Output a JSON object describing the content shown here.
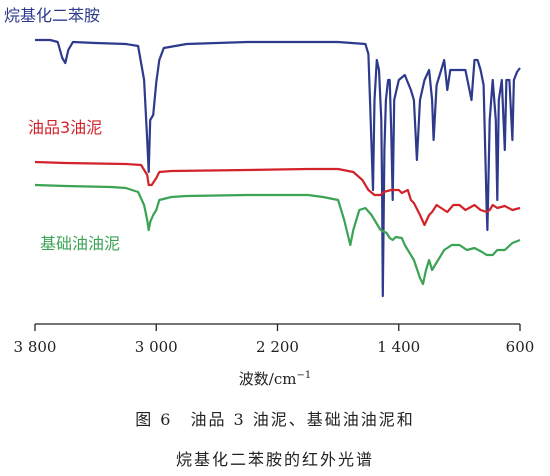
{
  "chart_data": {
    "type": "line",
    "x_reversed": true,
    "xlim": [
      3800,
      600
    ],
    "ticks": [
      3800,
      3000,
      2200,
      1400,
      600
    ],
    "tick_labels": [
      "3 800",
      "3 000",
      "2 200",
      "1 400",
      "600"
    ],
    "xlabel": "波数/cm",
    "xlabel_sup": "−1",
    "series": [
      {
        "name": "烷基化二苯胺",
        "color": "#2e3a8c",
        "points": [
          [
            3800,
            40
          ],
          [
            3700,
            40
          ],
          [
            3650,
            42
          ],
          [
            3620,
            58
          ],
          [
            3600,
            63
          ],
          [
            3580,
            50
          ],
          [
            3550,
            42
          ],
          [
            3400,
            43
          ],
          [
            3200,
            44
          ],
          [
            3120,
            46
          ],
          [
            3080,
            80
          ],
          [
            3060,
            140
          ],
          [
            3050,
            172
          ],
          [
            3040,
            120
          ],
          [
            3020,
            115
          ],
          [
            3000,
            82
          ],
          [
            2980,
            60
          ],
          [
            2950,
            48
          ],
          [
            2800,
            44
          ],
          [
            2400,
            42
          ],
          [
            2000,
            42
          ],
          [
            1800,
            42
          ],
          [
            1620,
            44
          ],
          [
            1600,
            54
          ],
          [
            1590,
            100
          ],
          [
            1570,
            190
          ],
          [
            1560,
            100
          ],
          [
            1545,
            60
          ],
          [
            1530,
            70
          ],
          [
            1515,
            120
          ],
          [
            1510,
            190
          ],
          [
            1505,
            296
          ],
          [
            1495,
            150
          ],
          [
            1485,
            100
          ],
          [
            1470,
            80
          ],
          [
            1460,
            80
          ],
          [
            1450,
            130
          ],
          [
            1440,
            200
          ],
          [
            1430,
            100
          ],
          [
            1400,
            80
          ],
          [
            1360,
            75
          ],
          [
            1320,
            90
          ],
          [
            1300,
            100
          ],
          [
            1280,
            160
          ],
          [
            1260,
            100
          ],
          [
            1230,
            80
          ],
          [
            1200,
            70
          ],
          [
            1180,
            100
          ],
          [
            1170,
            140
          ],
          [
            1150,
            85
          ],
          [
            1120,
            70
          ],
          [
            1100,
            60
          ],
          [
            1080,
            90
          ],
          [
            1060,
            70
          ],
          [
            1000,
            70
          ],
          [
            960,
            70
          ],
          [
            920,
            100
          ],
          [
            900,
            60
          ],
          [
            880,
            60
          ],
          [
            860,
            70
          ],
          [
            840,
            85
          ],
          [
            820,
            210
          ],
          [
            815,
            230
          ],
          [
            800,
            120
          ],
          [
            780,
            80
          ],
          [
            760,
            120
          ],
          [
            750,
            200
          ],
          [
            740,
            100
          ],
          [
            720,
            80
          ],
          [
            700,
            150
          ],
          [
            690,
            80
          ],
          [
            670,
            80
          ],
          [
            650,
            140
          ],
          [
            640,
            80
          ],
          [
            620,
            72
          ],
          [
            600,
            68
          ]
        ]
      },
      {
        "name": "油品3油泥",
        "color": "#d2232a",
        "points": [
          [
            3800,
            162
          ],
          [
            3600,
            163
          ],
          [
            3200,
            164
          ],
          [
            3100,
            165
          ],
          [
            3060,
            175
          ],
          [
            3050,
            185
          ],
          [
            3030,
            185
          ],
          [
            3000,
            178
          ],
          [
            2980,
            172
          ],
          [
            2900,
            171
          ],
          [
            2400,
            170
          ],
          [
            2000,
            169
          ],
          [
            1800,
            169
          ],
          [
            1700,
            172
          ],
          [
            1640,
            180
          ],
          [
            1600,
            190
          ],
          [
            1560,
            195
          ],
          [
            1520,
            195
          ],
          [
            1500,
            192
          ],
          [
            1450,
            190
          ],
          [
            1400,
            190
          ],
          [
            1380,
            193
          ],
          [
            1340,
            190
          ],
          [
            1320,
            200
          ],
          [
            1300,
            203
          ],
          [
            1260,
            215
          ],
          [
            1230,
            225
          ],
          [
            1200,
            215
          ],
          [
            1180,
            212
          ],
          [
            1150,
            205
          ],
          [
            1100,
            210
          ],
          [
            1080,
            212
          ],
          [
            1040,
            205
          ],
          [
            1000,
            205
          ],
          [
            960,
            210
          ],
          [
            900,
            205
          ],
          [
            860,
            210
          ],
          [
            820,
            212
          ],
          [
            800,
            210
          ],
          [
            780,
            205
          ],
          [
            750,
            208
          ],
          [
            700,
            206
          ],
          [
            650,
            210
          ],
          [
            600,
            208
          ]
        ]
      },
      {
        "name": "基础油油泥",
        "color": "#3aa354",
        "points": [
          [
            3800,
            185
          ],
          [
            3600,
            186
          ],
          [
            3300,
            187
          ],
          [
            3200,
            188
          ],
          [
            3120,
            192
          ],
          [
            3080,
            205
          ],
          [
            3060,
            220
          ],
          [
            3050,
            230
          ],
          [
            3040,
            222
          ],
          [
            3020,
            215
          ],
          [
            3000,
            210
          ],
          [
            2980,
            200
          ],
          [
            2900,
            197
          ],
          [
            2800,
            196
          ],
          [
            2400,
            195
          ],
          [
            2000,
            195
          ],
          [
            1900,
            197
          ],
          [
            1800,
            200
          ],
          [
            1760,
            220
          ],
          [
            1720,
            245
          ],
          [
            1700,
            230
          ],
          [
            1660,
            210
          ],
          [
            1620,
            208
          ],
          [
            1580,
            215
          ],
          [
            1540,
            225
          ],
          [
            1520,
            230
          ],
          [
            1480,
            233
          ],
          [
            1460,
            238
          ],
          [
            1440,
            240
          ],
          [
            1420,
            237
          ],
          [
            1380,
            238
          ],
          [
            1360,
            245
          ],
          [
            1300,
            260
          ],
          [
            1260,
            278
          ],
          [
            1240,
            284
          ],
          [
            1220,
            270
          ],
          [
            1200,
            260
          ],
          [
            1180,
            270
          ],
          [
            1160,
            265
          ],
          [
            1100,
            250
          ],
          [
            1050,
            245
          ],
          [
            1000,
            245
          ],
          [
            950,
            250
          ],
          [
            900,
            248
          ],
          [
            850,
            252
          ],
          [
            820,
            255
          ],
          [
            780,
            255
          ],
          [
            750,
            250
          ],
          [
            700,
            250
          ],
          [
            650,
            243
          ],
          [
            600,
            240
          ]
        ]
      }
    ],
    "caption_lines": [
      "图 6　油品 3 油泥、基础油油泥和",
      "烷基化二苯胺的红外光谱"
    ]
  }
}
